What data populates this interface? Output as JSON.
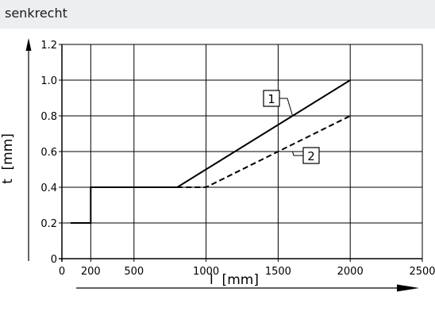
{
  "header": {
    "title": "senkrecht"
  },
  "chart_data": {
    "type": "line",
    "title": "",
    "xlabel": "l  [mm]",
    "ylabel": "t  [mm]",
    "xlim": [
      0,
      2500
    ],
    "ylim": [
      0,
      1.2
    ],
    "x_ticks": [
      0,
      200,
      500,
      1000,
      1500,
      2000,
      2500
    ],
    "x_tick_labels": [
      "0",
      "200",
      "500",
      "1000",
      "1500",
      "2000",
      "2500"
    ],
    "y_ticks": [
      0,
      0.2,
      0.4,
      0.6,
      0.8,
      1.0,
      1.2
    ],
    "y_tick_labels": [
      "0",
      "0.2",
      "0.4",
      "0.6",
      "0.8",
      "1.0",
      "1.2"
    ],
    "grid": true,
    "series": [
      {
        "name": "1",
        "style": "solid",
        "points": [
          [
            60,
            0.2
          ],
          [
            200,
            0.2
          ],
          [
            200,
            0.4
          ],
          [
            800,
            0.4
          ],
          [
            2000,
            1.0
          ]
        ]
      },
      {
        "name": "2",
        "style": "dashed",
        "points": [
          [
            800,
            0.4
          ],
          [
            1000,
            0.4
          ],
          [
            2000,
            0.8
          ]
        ]
      }
    ],
    "callouts": [
      {
        "label": "1",
        "series": 0,
        "target": [
          1600,
          0.8
        ]
      },
      {
        "label": "2",
        "series": 1,
        "target": [
          1600,
          0.6
        ]
      }
    ],
    "colors": {
      "line": "#000000",
      "grid": "#000000"
    }
  }
}
